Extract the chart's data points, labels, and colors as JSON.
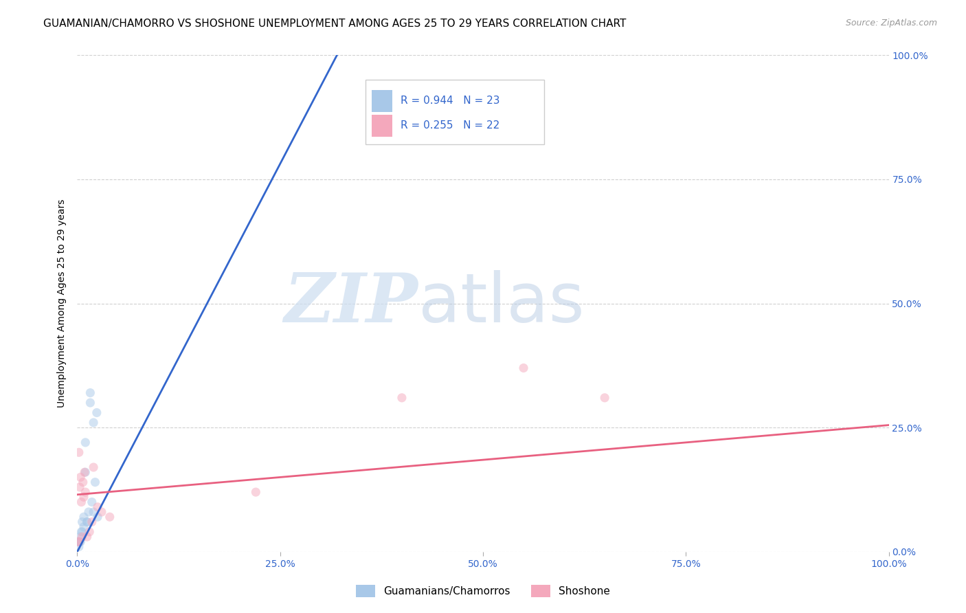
{
  "title": "GUAMANIAN/CHAMORRO VS SHOSHONE UNEMPLOYMENT AMONG AGES 25 TO 29 YEARS CORRELATION CHART",
  "source": "Source: ZipAtlas.com",
  "ylabel": "Unemployment Among Ages 25 to 29 years",
  "watermark_zip": "ZIP",
  "watermark_atlas": "atlas",
  "xlim": [
    0.0,
    1.0
  ],
  "ylim": [
    0.0,
    1.0
  ],
  "x_tick_labels": [
    "0.0%",
    "25.0%",
    "50.0%",
    "75.0%",
    "100.0%"
  ],
  "x_tick_positions": [
    0.0,
    0.25,
    0.5,
    0.75,
    1.0
  ],
  "y_tick_labels_right": [
    "100.0%",
    "75.0%",
    "50.0%",
    "25.0%",
    "0.0%"
  ],
  "y_tick_positions_right": [
    1.0,
    0.75,
    0.5,
    0.25,
    0.0
  ],
  "blue_R": "0.944",
  "blue_N": "23",
  "pink_R": "0.255",
  "pink_N": "22",
  "blue_color": "#a8c8e8",
  "pink_color": "#f4a8bc",
  "blue_line_color": "#3366cc",
  "pink_line_color": "#e86080",
  "legend_label_blue": "Guamanians/Chamorros",
  "legend_label_pink": "Shoshone",
  "blue_scatter_x": [
    0.001,
    0.003,
    0.005,
    0.006,
    0.008,
    0.01,
    0.012,
    0.014,
    0.016,
    0.018,
    0.02,
    0.022,
    0.024,
    0.002,
    0.004,
    0.006,
    0.008,
    0.01,
    0.012,
    0.016,
    0.02,
    0.025,
    0.003
  ],
  "blue_scatter_y": [
    0.02,
    0.03,
    0.04,
    0.06,
    0.05,
    0.22,
    0.06,
    0.08,
    0.3,
    0.1,
    0.26,
    0.14,
    0.28,
    0.01,
    0.02,
    0.04,
    0.07,
    0.16,
    0.06,
    0.32,
    0.08,
    0.07,
    0.02
  ],
  "pink_scatter_x": [
    0.001,
    0.002,
    0.003,
    0.004,
    0.005,
    0.006,
    0.007,
    0.008,
    0.009,
    0.01,
    0.012,
    0.015,
    0.018,
    0.02,
    0.025,
    0.03,
    0.04,
    0.55,
    0.65,
    0.4,
    0.22,
    0.002
  ],
  "pink_scatter_y": [
    0.02,
    0.02,
    0.13,
    0.15,
    0.1,
    0.03,
    0.14,
    0.11,
    0.16,
    0.12,
    0.03,
    0.04,
    0.06,
    0.17,
    0.09,
    0.08,
    0.07,
    0.37,
    0.31,
    0.31,
    0.12,
    0.2
  ],
  "blue_line_x": [
    0.0,
    0.32
  ],
  "blue_line_y": [
    0.0,
    1.0
  ],
  "pink_line_x": [
    0.0,
    1.0
  ],
  "pink_line_y": [
    0.115,
    0.255
  ],
  "background_color": "#ffffff",
  "grid_color": "#d0d0d0",
  "title_fontsize": 11,
  "axis_label_fontsize": 10,
  "tick_fontsize": 10,
  "scatter_size": 90,
  "scatter_alpha": 0.5,
  "tick_color": "#3366cc"
}
